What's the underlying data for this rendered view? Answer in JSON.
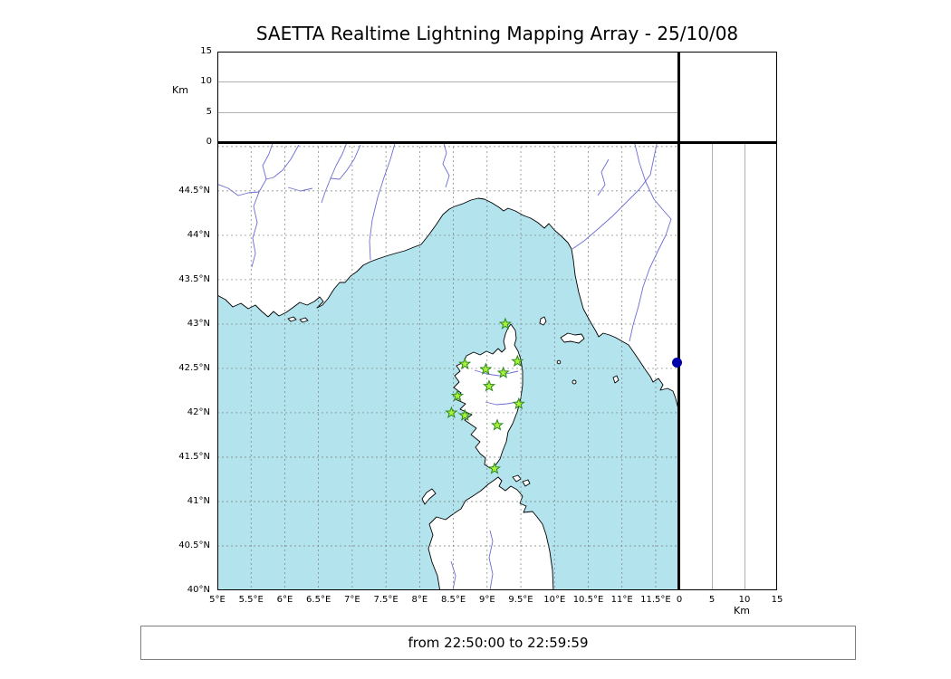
{
  "title": "SAETTA Realtime Lightning Mapping Array - 25/10/08",
  "footer": {
    "time_range": "from 22:50:00 to 22:59:59"
  },
  "colors": {
    "sea": "#b3e4ee",
    "land": "#ffffff",
    "coast": "#000000",
    "river": "#5c5ccf",
    "graticule": "#7a7a7a",
    "panel_grid": "#b0b0b0",
    "station_fill": "#a8f03a",
    "station_edge": "#2d8a1e",
    "event_dot": "#0000a8",
    "frame": "#000000",
    "footer_border": "#808080"
  },
  "altitude_panel_top": {
    "axis_label": "Km",
    "max_km": 15,
    "ticks": [
      {
        "label": "0",
        "value": 0
      },
      {
        "label": "5",
        "value": 5
      },
      {
        "label": "10",
        "value": 10
      },
      {
        "label": "15",
        "value": 15
      }
    ],
    "gridlines_km": [
      5,
      10
    ]
  },
  "altitude_panel_right": {
    "axis_label": "Km",
    "max_km": 15,
    "ticks": [
      {
        "label": "0",
        "value": 0
      },
      {
        "label": "5",
        "value": 5
      },
      {
        "label": "10",
        "value": 10
      },
      {
        "label": "15",
        "value": 15
      }
    ],
    "gridlines_km": [
      5,
      10
    ]
  },
  "map_panel": {
    "lon_range": [
      5,
      11.85
    ],
    "lat_range": [
      40,
      45.05
    ],
    "grid_step_deg": 0.5,
    "lon_ticks": [
      {
        "label": "5°E",
        "value": 5
      },
      {
        "label": "5.5°E",
        "value": 5.5
      },
      {
        "label": "6°E",
        "value": 6
      },
      {
        "label": "6.5°E",
        "value": 6.5
      },
      {
        "label": "7°E",
        "value": 7
      },
      {
        "label": "7.5°E",
        "value": 7.5
      },
      {
        "label": "8°E",
        "value": 8
      },
      {
        "label": "8.5°E",
        "value": 8.5
      },
      {
        "label": "9°E",
        "value": 9
      },
      {
        "label": "9.5°E",
        "value": 9.5
      },
      {
        "label": "10°E",
        "value": 10
      },
      {
        "label": "10.5°E",
        "value": 10.5
      },
      {
        "label": "11°E",
        "value": 11
      },
      {
        "label": "11.5°E",
        "value": 11.5
      }
    ],
    "lat_ticks": [
      {
        "label": "40°N",
        "value": 40
      },
      {
        "label": "40.5°N",
        "value": 40.5
      },
      {
        "label": "41°N",
        "value": 41
      },
      {
        "label": "41.5°N",
        "value": 41.5
      },
      {
        "label": "42°N",
        "value": 42
      },
      {
        "label": "42.5°N",
        "value": 42.5
      },
      {
        "label": "43°N",
        "value": 43
      },
      {
        "label": "43.5°N",
        "value": 43.5
      },
      {
        "label": "44°N",
        "value": 44
      },
      {
        "label": "44.5°N",
        "value": 44.5
      }
    ],
    "stations_lonlat": [
      [
        9.27,
        43.0
      ],
      [
        8.67,
        42.55
      ],
      [
        8.98,
        42.49
      ],
      [
        9.24,
        42.45
      ],
      [
        9.45,
        42.58
      ],
      [
        9.03,
        42.3
      ],
      [
        8.56,
        42.19
      ],
      [
        8.47,
        42.0
      ],
      [
        8.67,
        41.97
      ],
      [
        9.47,
        42.1
      ],
      [
        9.15,
        41.86
      ],
      [
        9.11,
        41.37
      ]
    ],
    "event_lonlat": [
      [
        11.81,
        42.57
      ]
    ]
  }
}
